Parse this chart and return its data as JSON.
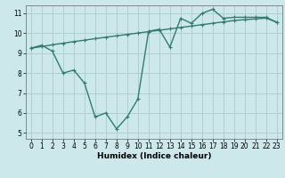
{
  "xlabel": "Humidex (Indice chaleur)",
  "ylabel": "",
  "bg_color": "#cce8ea",
  "grid_color": "#aacccc",
  "line_color": "#2e7d6e",
  "x_min": -0.5,
  "x_max": 23.5,
  "y_min": 4.7,
  "y_max": 11.4,
  "x_ticks": [
    0,
    1,
    2,
    3,
    4,
    5,
    6,
    7,
    8,
    9,
    10,
    11,
    12,
    13,
    14,
    15,
    16,
    17,
    18,
    19,
    20,
    21,
    22,
    23
  ],
  "y_ticks": [
    5,
    6,
    7,
    8,
    9,
    10,
    11
  ],
  "line1_x": [
    0,
    1,
    2,
    3,
    4,
    5,
    6,
    7,
    8,
    9,
    10,
    11,
    12,
    13,
    14,
    15,
    16,
    17,
    18,
    19,
    20,
    21,
    22,
    23
  ],
  "line1_y": [
    9.25,
    9.33,
    9.42,
    9.5,
    9.58,
    9.65,
    9.73,
    9.8,
    9.87,
    9.94,
    10.01,
    10.08,
    10.15,
    10.22,
    10.29,
    10.36,
    10.43,
    10.5,
    10.57,
    10.64,
    10.68,
    10.72,
    10.76,
    10.55
  ],
  "line2_x": [
    0,
    1,
    2,
    3,
    4,
    5,
    6,
    7,
    8,
    9,
    10,
    11,
    12,
    13,
    14,
    15,
    16,
    17,
    18,
    19,
    20,
    21,
    22,
    23
  ],
  "line2_y": [
    9.25,
    9.4,
    9.1,
    8.0,
    8.15,
    7.5,
    5.8,
    6.0,
    5.2,
    5.8,
    6.7,
    10.1,
    10.2,
    9.3,
    10.75,
    10.5,
    11.0,
    11.2,
    10.75,
    10.8,
    10.8,
    10.8,
    10.8,
    10.55
  ],
  "marker_size": 2.5,
  "linewidth": 1.0,
  "tick_fontsize": 5.5,
  "label_fontsize": 6.5
}
